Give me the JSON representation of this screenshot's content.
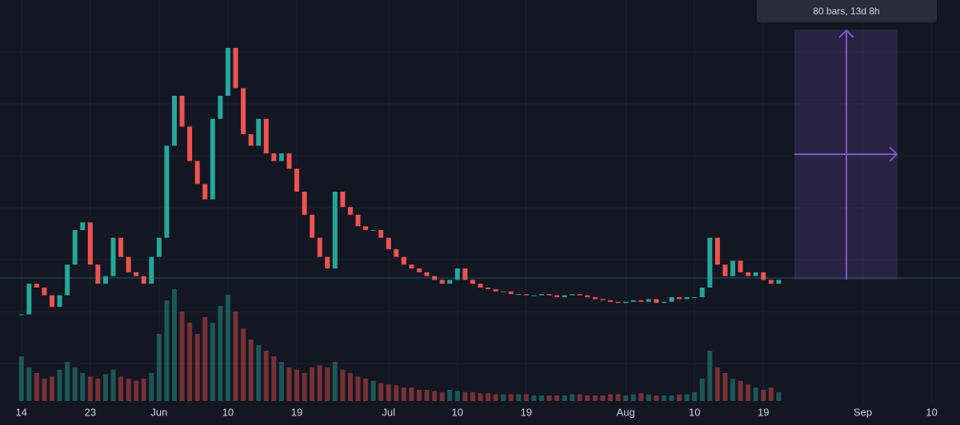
{
  "chart_data": {
    "type": "candlestick",
    "values": [
      18,
      26,
      25,
      23,
      20,
      23,
      31,
      40,
      42,
      31,
      26,
      28,
      38,
      33,
      29,
      28,
      26,
      33,
      38,
      62,
      75,
      67,
      58,
      52,
      48,
      69,
      75,
      87.5,
      77,
      65,
      62,
      69,
      60,
      58,
      60,
      56,
      50,
      44,
      38,
      33,
      30,
      50,
      46,
      44,
      41,
      40,
      40,
      38,
      35,
      33,
      31,
      30,
      29,
      28,
      27,
      26,
      27,
      30,
      27,
      26,
      25,
      24.6,
      24,
      24,
      23.3,
      23.3,
      23,
      23,
      23.3,
      23,
      22.5,
      23,
      23.3,
      23,
      22.5,
      22,
      21.7,
      21.3,
      21,
      21.3,
      21.7,
      21.3,
      22,
      21,
      21.3,
      22.5,
      22,
      22.5,
      22.5,
      25,
      38,
      31,
      28,
      32,
      29,
      28,
      29,
      27,
      26,
      27
    ],
    "volume": [
      40,
      30,
      25,
      20,
      22,
      28,
      35,
      30,
      25,
      22,
      20,
      24,
      28,
      22,
      20,
      18,
      20,
      25,
      60,
      90,
      100,
      80,
      70,
      60,
      75,
      70,
      85,
      95,
      80,
      65,
      55,
      50,
      45,
      40,
      35,
      30,
      28,
      25,
      30,
      32,
      30,
      35,
      28,
      25,
      22,
      20,
      18,
      16,
      15,
      14,
      12,
      12,
      10,
      10,
      9,
      8,
      10,
      9,
      8,
      8,
      7,
      7,
      6,
      6,
      6,
      6,
      6,
      5,
      5,
      5,
      5,
      5,
      6,
      6,
      5,
      5,
      5,
      6,
      6,
      5,
      6,
      7,
      6,
      5,
      5,
      5,
      6,
      6,
      8,
      20,
      45,
      30,
      25,
      20,
      18,
      15,
      12,
      10,
      12,
      8
    ],
    "up_color": "#26a69a",
    "down_color": "#ef5350",
    "ylim": [
      0,
      100
    ],
    "volume_lim": [
      0,
      100
    ],
    "xlim": [
      -2.8,
      122.7
    ],
    "xticks": [
      {
        "value": 0,
        "label": "14"
      },
      {
        "value": 9,
        "label": "23"
      },
      {
        "value": 18,
        "label": "Jun"
      },
      {
        "value": 27,
        "label": "10"
      },
      {
        "value": 36,
        "label": "19"
      },
      {
        "value": 48,
        "label": "Jul"
      },
      {
        "value": 57,
        "label": "10"
      },
      {
        "value": 66,
        "label": "19"
      },
      {
        "value": 79,
        "label": "Aug"
      },
      {
        "value": 88,
        "label": "10"
      },
      {
        "value": 97,
        "label": "19"
      },
      {
        "value": 110,
        "label": "Sep"
      },
      {
        "value": 119,
        "label": "10"
      }
    ],
    "annotation": "80 bars, 13d 8h"
  }
}
